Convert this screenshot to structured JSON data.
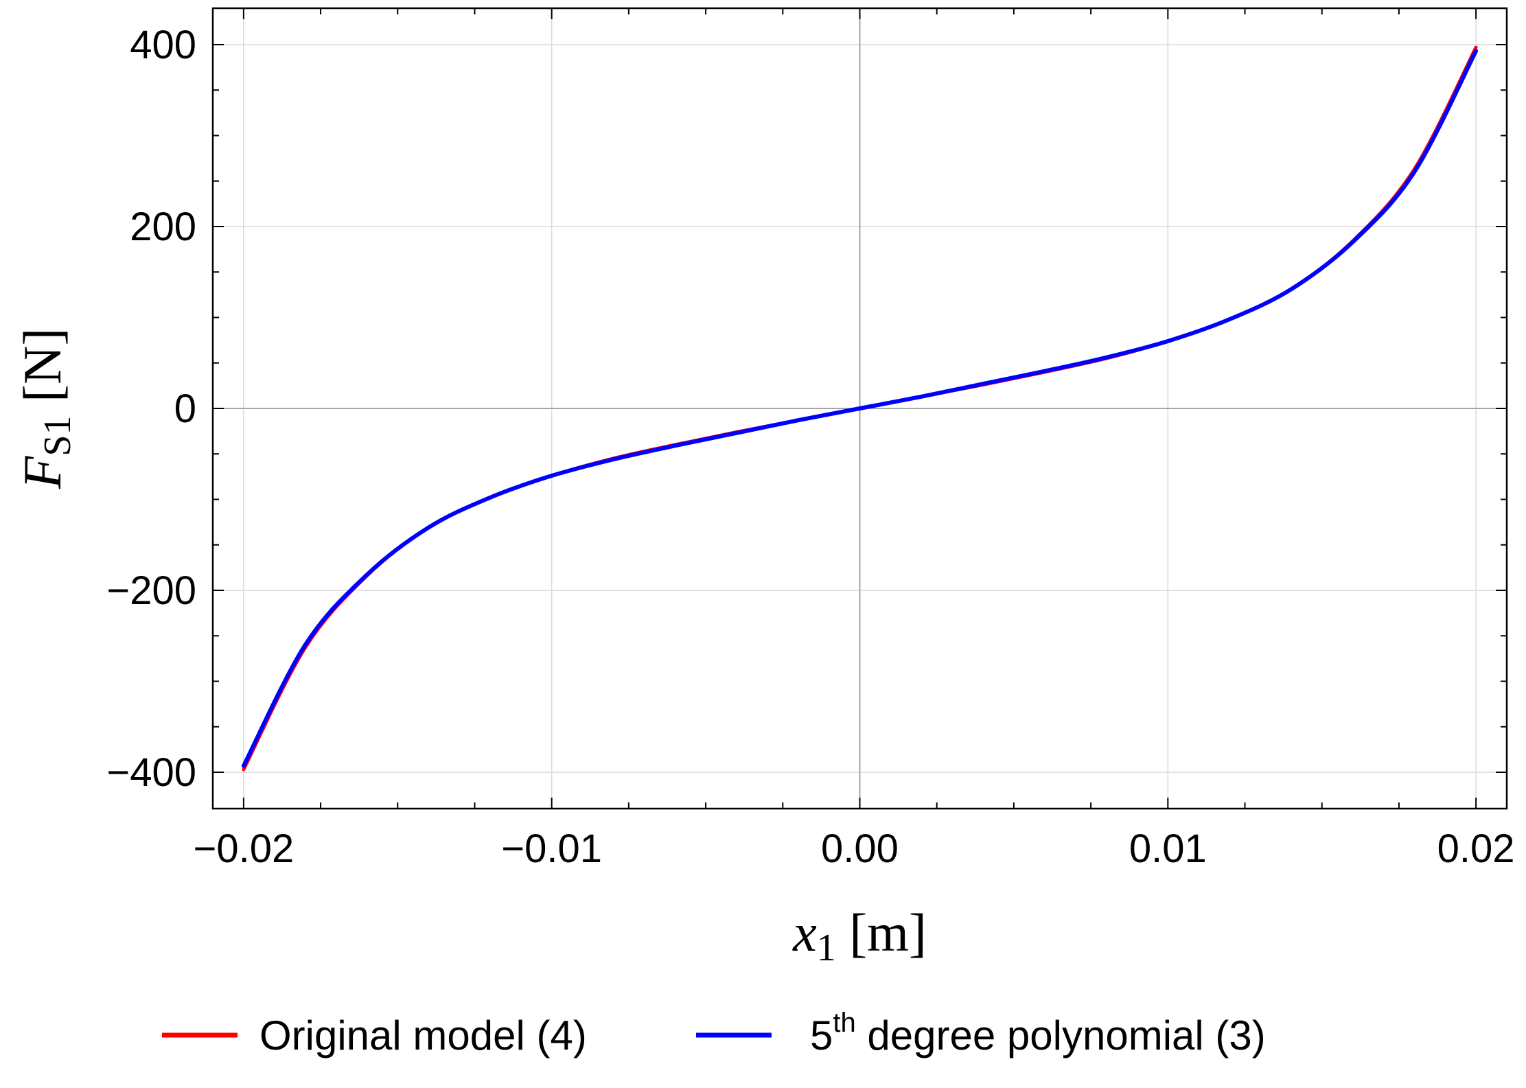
{
  "chart_data": {
    "type": "line",
    "title": "",
    "xlabel": {
      "var": "x",
      "sub": "1",
      "unit": "[m]"
    },
    "ylabel": {
      "var": "F",
      "sub": "S1",
      "unit": "[N]"
    },
    "xlim": [
      -0.021,
      0.021
    ],
    "ylim": [
      -440,
      440
    ],
    "xticks": [
      -0.02,
      -0.01,
      0.0,
      0.01,
      0.02
    ],
    "xtick_labels": [
      "−0.02",
      "−0.01",
      "0.00",
      "0.01",
      "0.02"
    ],
    "yticks": [
      -400,
      -200,
      0,
      200,
      400
    ],
    "ytick_labels": [
      "−400",
      "−200",
      "0",
      "200",
      "400"
    ],
    "grid": true,
    "legend": "bottom",
    "x": [
      -0.02,
      -0.018,
      -0.016,
      -0.014,
      -0.012,
      -0.01,
      -0.008,
      -0.006,
      -0.004,
      -0.002,
      0.0,
      0.002,
      0.004,
      0.006,
      0.008,
      0.01,
      0.012,
      0.014,
      0.016,
      0.018,
      0.02
    ],
    "series": [
      {
        "name": "Original model (4)",
        "color": "#ff0000",
        "values": [
          -397,
          -263,
          -184,
          -131,
          -98,
          -74,
          -55,
          -40,
          -26,
          -13,
          0,
          13,
          26,
          40,
          55,
          74,
          98,
          131,
          184,
          263,
          397
        ]
      },
      {
        "name_main": "5",
        "name_sup": "th",
        "name_rest": " degree polynomial (3)",
        "color": "#0000ff",
        "values": [
          -393,
          -260,
          -183,
          -131,
          -98,
          -74,
          -56,
          -41,
          -27,
          -13,
          0,
          13,
          27,
          41,
          56,
          74,
          98,
          131,
          183,
          260,
          393
        ]
      }
    ]
  }
}
